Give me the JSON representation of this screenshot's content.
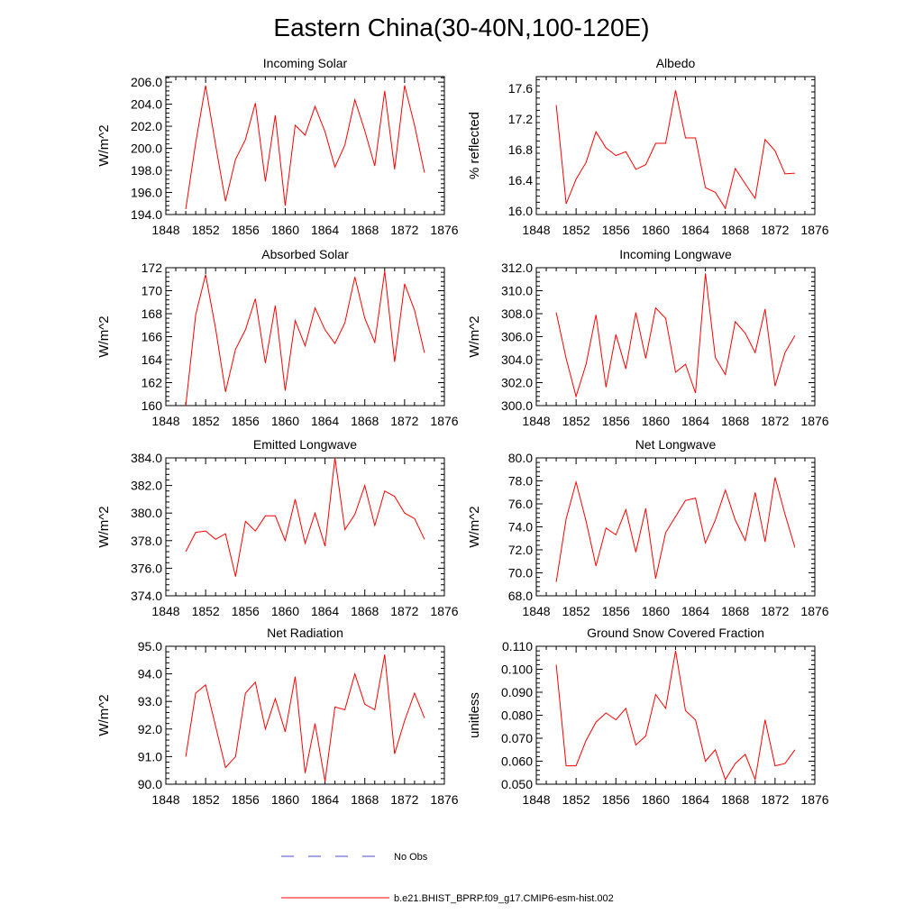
{
  "title": "Eastern China(30-40N,100-120E)",
  "colors": {
    "model": "#ff0000",
    "obs": "#4a4acc"
  },
  "legend": {
    "obs_label": "No Obs",
    "model_label": "b.e21.BHIST_BPRP.f09_g17.CMIP6-esm-hist.002"
  },
  "chart_data": [
    {
      "type": "line",
      "title": "Incoming Solar",
      "ylabel": "W/m^2",
      "xlim": [
        1848,
        1876
      ],
      "xticks": [
        1848,
        1852,
        1856,
        1860,
        1864,
        1868,
        1872,
        1876
      ],
      "ylim": [
        194,
        206.5
      ],
      "yticks": [
        "194.0",
        "196.0",
        "198.0",
        "200.0",
        "202.0",
        "204.0",
        "206.0"
      ],
      "x": [
        1850,
        1851,
        1852,
        1853,
        1854,
        1855,
        1856,
        1857,
        1858,
        1859,
        1860,
        1861,
        1862,
        1863,
        1864,
        1865,
        1866,
        1867,
        1868,
        1869,
        1870,
        1871,
        1872,
        1873,
        1874
      ],
      "series": [
        {
          "name": "b.e21.BHIST_BPRP.f09_g17.CMIP6-esm-hist.002",
          "values": [
            194.5,
            200.5,
            205.7,
            200.3,
            195.2,
            199.0,
            200.8,
            204.1,
            197.0,
            203.0,
            194.8,
            202.1,
            201.2,
            203.8,
            201.5,
            198.3,
            200.3,
            204.4,
            201.6,
            198.4,
            205.2,
            198.1,
            205.7,
            202.1,
            197.8
          ]
        }
      ]
    },
    {
      "type": "line",
      "title": "Albedo",
      "ylabel": "% reflected",
      "xlim": [
        1848,
        1876
      ],
      "xticks": [
        1848,
        1852,
        1856,
        1860,
        1864,
        1868,
        1872,
        1876
      ],
      "ylim": [
        15.95,
        17.75
      ],
      "yticks": [
        "16.0",
        "16.4",
        "16.8",
        "17.2",
        "17.6"
      ],
      "x": [
        1850,
        1851,
        1852,
        1853,
        1854,
        1855,
        1856,
        1857,
        1858,
        1859,
        1860,
        1861,
        1862,
        1863,
        1864,
        1865,
        1866,
        1867,
        1868,
        1869,
        1870,
        1871,
        1872,
        1873,
        1874
      ],
      "series": [
        {
          "name": "b.e21.BHIST_BPRP.f09_g17.CMIP6-esm-hist.002",
          "values": [
            17.38,
            16.09,
            16.41,
            16.63,
            17.03,
            16.82,
            16.72,
            16.77,
            16.54,
            16.6,
            16.88,
            16.88,
            17.57,
            16.95,
            16.95,
            16.3,
            16.24,
            16.03,
            16.55,
            16.35,
            16.16,
            16.93,
            16.78,
            16.48,
            16.49
          ]
        }
      ]
    },
    {
      "type": "line",
      "title": "Absorbed Solar",
      "ylabel": "W/m^2",
      "xlim": [
        1848,
        1876
      ],
      "xticks": [
        1848,
        1852,
        1856,
        1860,
        1864,
        1868,
        1872,
        1876
      ],
      "ylim": [
        160,
        172
      ],
      "yticks": [
        "160",
        "162",
        "164",
        "166",
        "168",
        "170",
        "172"
      ],
      "x": [
        1850,
        1851,
        1852,
        1853,
        1854,
        1855,
        1856,
        1857,
        1858,
        1859,
        1860,
        1861,
        1862,
        1863,
        1864,
        1865,
        1866,
        1867,
        1868,
        1869,
        1870,
        1871,
        1872,
        1873,
        1874
      ],
      "series": [
        {
          "name": "b.e21.BHIST_BPRP.f09_g17.CMIP6-esm-hist.002",
          "values": [
            160.0,
            167.9,
            171.4,
            166.7,
            161.2,
            164.9,
            166.6,
            169.3,
            163.7,
            168.7,
            161.3,
            167.4,
            165.2,
            168.5,
            166.6,
            165.4,
            167.2,
            171.2,
            167.6,
            165.5,
            171.7,
            163.8,
            170.6,
            168.3,
            164.6
          ]
        }
      ]
    },
    {
      "type": "line",
      "title": "Incoming Longwave",
      "ylabel": "W/m^2",
      "xlim": [
        1848,
        1876
      ],
      "xticks": [
        1848,
        1852,
        1856,
        1860,
        1864,
        1868,
        1872,
        1876
      ],
      "ylim": [
        300,
        312
      ],
      "yticks": [
        "300.0",
        "302.0",
        "304.0",
        "306.0",
        "308.0",
        "310.0",
        "312.0"
      ],
      "x": [
        1850,
        1851,
        1852,
        1853,
        1854,
        1855,
        1856,
        1857,
        1858,
        1859,
        1860,
        1861,
        1862,
        1863,
        1864,
        1865,
        1866,
        1867,
        1868,
        1869,
        1870,
        1871,
        1872,
        1873,
        1874
      ],
      "series": [
        {
          "name": "b.e21.BHIST_BPRP.f09_g17.CMIP6-esm-hist.002",
          "values": [
            308.1,
            304.1,
            300.8,
            303.6,
            307.9,
            301.6,
            306.2,
            303.2,
            308.1,
            304.1,
            308.5,
            307.6,
            302.9,
            303.6,
            301.1,
            311.5,
            304.2,
            302.7,
            307.3,
            306.3,
            304.6,
            308.4,
            301.7,
            304.6,
            306.1
          ]
        }
      ]
    },
    {
      "type": "line",
      "title": "Emitted Longwave",
      "ylabel": "W/m^2",
      "xlim": [
        1848,
        1876
      ],
      "xticks": [
        1848,
        1852,
        1856,
        1860,
        1864,
        1868,
        1872,
        1876
      ],
      "ylim": [
        374,
        384
      ],
      "yticks": [
        "374.0",
        "376.0",
        "378.0",
        "380.0",
        "382.0",
        "384.0"
      ],
      "x": [
        1850,
        1851,
        1852,
        1853,
        1854,
        1855,
        1856,
        1857,
        1858,
        1859,
        1860,
        1861,
        1862,
        1863,
        1864,
        1865,
        1866,
        1867,
        1868,
        1869,
        1870,
        1871,
        1872,
        1873,
        1874
      ],
      "series": [
        {
          "name": "b.e21.BHIST_BPRP.f09_g17.CMIP6-esm-hist.002",
          "values": [
            377.2,
            378.6,
            378.7,
            378.1,
            378.5,
            375.4,
            379.4,
            378.7,
            379.8,
            379.8,
            378.0,
            381.0,
            377.8,
            380.0,
            377.6,
            384.0,
            378.8,
            379.9,
            382.0,
            379.1,
            381.6,
            381.2,
            380.0,
            379.6,
            378.1
          ]
        }
      ]
    },
    {
      "type": "line",
      "title": "Net Longwave",
      "ylabel": "W/m^2",
      "xlim": [
        1848,
        1876
      ],
      "xticks": [
        1848,
        1852,
        1856,
        1860,
        1864,
        1868,
        1872,
        1876
      ],
      "ylim": [
        68,
        80
      ],
      "yticks": [
        "68.0",
        "70.0",
        "72.0",
        "74.0",
        "76.0",
        "78.0",
        "80.0"
      ],
      "x": [
        1850,
        1851,
        1852,
        1853,
        1854,
        1855,
        1856,
        1857,
        1858,
        1859,
        1860,
        1861,
        1862,
        1863,
        1864,
        1865,
        1866,
        1867,
        1868,
        1869,
        1870,
        1871,
        1872,
        1873,
        1874
      ],
      "series": [
        {
          "name": "b.e21.BHIST_BPRP.f09_g17.CMIP6-esm-hist.002",
          "values": [
            69.2,
            74.7,
            77.9,
            74.5,
            70.6,
            73.9,
            73.3,
            75.5,
            71.8,
            75.6,
            69.5,
            73.5,
            74.9,
            76.3,
            76.5,
            72.6,
            74.6,
            77.2,
            74.6,
            72.8,
            77.0,
            72.7,
            78.3,
            75.1,
            72.2
          ]
        }
      ]
    },
    {
      "type": "line",
      "title": "Net Radiation",
      "ylabel": "W/m^2",
      "xlim": [
        1848,
        1876
      ],
      "xticks": [
        1848,
        1852,
        1856,
        1860,
        1864,
        1868,
        1872,
        1876
      ],
      "ylim": [
        90,
        95
      ],
      "yticks": [
        "90.0",
        "91.0",
        "92.0",
        "93.0",
        "94.0",
        "95.0"
      ],
      "x": [
        1850,
        1851,
        1852,
        1853,
        1854,
        1855,
        1856,
        1857,
        1858,
        1859,
        1860,
        1861,
        1862,
        1863,
        1864,
        1865,
        1866,
        1867,
        1868,
        1869,
        1870,
        1871,
        1872,
        1873,
        1874
      ],
      "series": [
        {
          "name": "b.e21.BHIST_BPRP.f09_g17.CMIP6-esm-hist.002",
          "values": [
            91.0,
            93.3,
            93.6,
            92.1,
            90.6,
            91.0,
            93.3,
            93.7,
            92.0,
            93.1,
            91.9,
            93.9,
            90.4,
            92.2,
            90.1,
            92.8,
            92.7,
            94.0,
            92.9,
            92.7,
            94.7,
            91.1,
            92.3,
            93.3,
            92.4
          ]
        }
      ]
    },
    {
      "type": "line",
      "title": "Ground Snow Covered Fraction",
      "ylabel": "unitless",
      "xlim": [
        1848,
        1876
      ],
      "xticks": [
        1848,
        1852,
        1856,
        1860,
        1864,
        1868,
        1872,
        1876
      ],
      "ylim": [
        0.05,
        0.11
      ],
      "yticks": [
        "0.050",
        "0.060",
        "0.070",
        "0.080",
        "0.090",
        "0.100",
        "0.110"
      ],
      "x": [
        1850,
        1851,
        1852,
        1853,
        1854,
        1855,
        1856,
        1857,
        1858,
        1859,
        1860,
        1861,
        1862,
        1863,
        1864,
        1865,
        1866,
        1867,
        1868,
        1869,
        1870,
        1871,
        1872,
        1873,
        1874
      ],
      "series": [
        {
          "name": "b.e21.BHIST_BPRP.f09_g17.CMIP6-esm-hist.002",
          "values": [
            0.102,
            0.058,
            0.058,
            0.069,
            0.077,
            0.081,
            0.078,
            0.083,
            0.067,
            0.071,
            0.089,
            0.083,
            0.108,
            0.082,
            0.078,
            0.06,
            0.065,
            0.052,
            0.059,
            0.063,
            0.052,
            0.078,
            0.058,
            0.059,
            0.065
          ]
        }
      ]
    }
  ]
}
